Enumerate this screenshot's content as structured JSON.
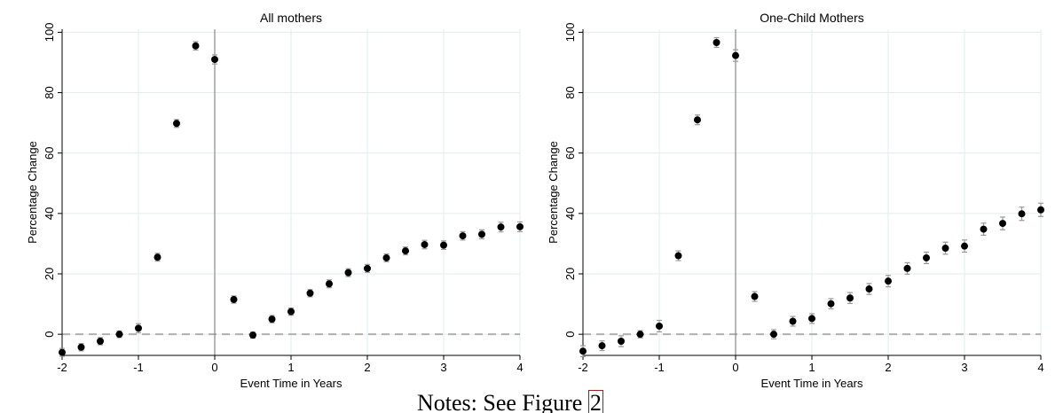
{
  "chart_data": [
    {
      "type": "scatter",
      "title": "All mothers",
      "xlabel": "Event Time in Years",
      "ylabel": "Percentage Change",
      "xlim": [
        -2,
        4
      ],
      "ylim": [
        -7,
        101
      ],
      "xticks": [
        -2,
        -1,
        0,
        1,
        2,
        3,
        4
      ],
      "yticks": [
        0,
        20,
        40,
        60,
        80,
        100
      ],
      "reference_lines": {
        "vertical_x": 0,
        "horizontal_dashed_y": 0
      },
      "grid": true,
      "x": [
        -2,
        -1.75,
        -1.5,
        -1.25,
        -1,
        -0.75,
        -0.5,
        -0.25,
        0,
        0.25,
        0.5,
        0.75,
        1,
        1.25,
        1.5,
        1.75,
        2,
        2.25,
        2.5,
        2.75,
        3,
        3.25,
        3.5,
        3.75,
        4
      ],
      "y": [
        -6,
        -4.3,
        -2.3,
        0,
        2,
        25.5,
        69.8,
        95.5,
        91,
        11.5,
        -0.3,
        5,
        7.5,
        13.6,
        16.7,
        20.4,
        21.8,
        25.3,
        27.6,
        29.7,
        29.5,
        32.6,
        33.1,
        35.5,
        35.6
      ],
      "ci_halfwidth": [
        1.3,
        1.2,
        1.2,
        1.1,
        1.5,
        1.3,
        1.3,
        1.4,
        1.5,
        1.2,
        1.0,
        1.2,
        1.2,
        1.2,
        1.3,
        1.3,
        1.3,
        1.3,
        1.3,
        1.4,
        1.4,
        1.4,
        1.5,
        1.6,
        1.6
      ]
    },
    {
      "type": "scatter",
      "title": "One-Child Mothers",
      "xlabel": "Event Time in Years",
      "ylabel": "Percentage Change",
      "xlim": [
        -2,
        4
      ],
      "ylim": [
        -7,
        101
      ],
      "xticks": [
        -2,
        -1,
        0,
        1,
        2,
        3,
        4
      ],
      "yticks": [
        0,
        20,
        40,
        60,
        80,
        100
      ],
      "reference_lines": {
        "vertical_x": 0,
        "horizontal_dashed_y": 0
      },
      "grid": true,
      "x": [
        -2,
        -1.75,
        -1.5,
        -1.25,
        -1,
        -0.75,
        -0.5,
        -0.25,
        0,
        0.25,
        0.5,
        0.75,
        1,
        1.25,
        1.5,
        1.75,
        2,
        2.25,
        2.5,
        2.75,
        3,
        3.25,
        3.5,
        3.75,
        4
      ],
      "y": [
        -5.6,
        -3.8,
        -2.3,
        0,
        2.7,
        26,
        71,
        96.6,
        92.3,
        12.5,
        0,
        4.3,
        5.2,
        10.1,
        12,
        15,
        17.6,
        21.8,
        25.3,
        28.5,
        29.2,
        34.8,
        36.7,
        39.9,
        41.2
      ],
      "ci_halfwidth": [
        1.8,
        1.6,
        1.8,
        1.2,
        1.9,
        1.6,
        1.6,
        1.6,
        1.9,
        1.6,
        1.5,
        1.6,
        1.6,
        1.7,
        1.8,
        1.8,
        1.9,
        1.9,
        1.9,
        2.0,
        2.0,
        2.0,
        2.1,
        2.2,
        2.2
      ]
    }
  ],
  "notes": {
    "prefix": "Notes: See Figure ",
    "ref": "2"
  },
  "colors": {
    "marker": "#000000",
    "ci": "#999999",
    "grid": "#e2ecee",
    "zero_line": "#b0b0b0",
    "axis": "#000000",
    "vline": "#888888"
  }
}
